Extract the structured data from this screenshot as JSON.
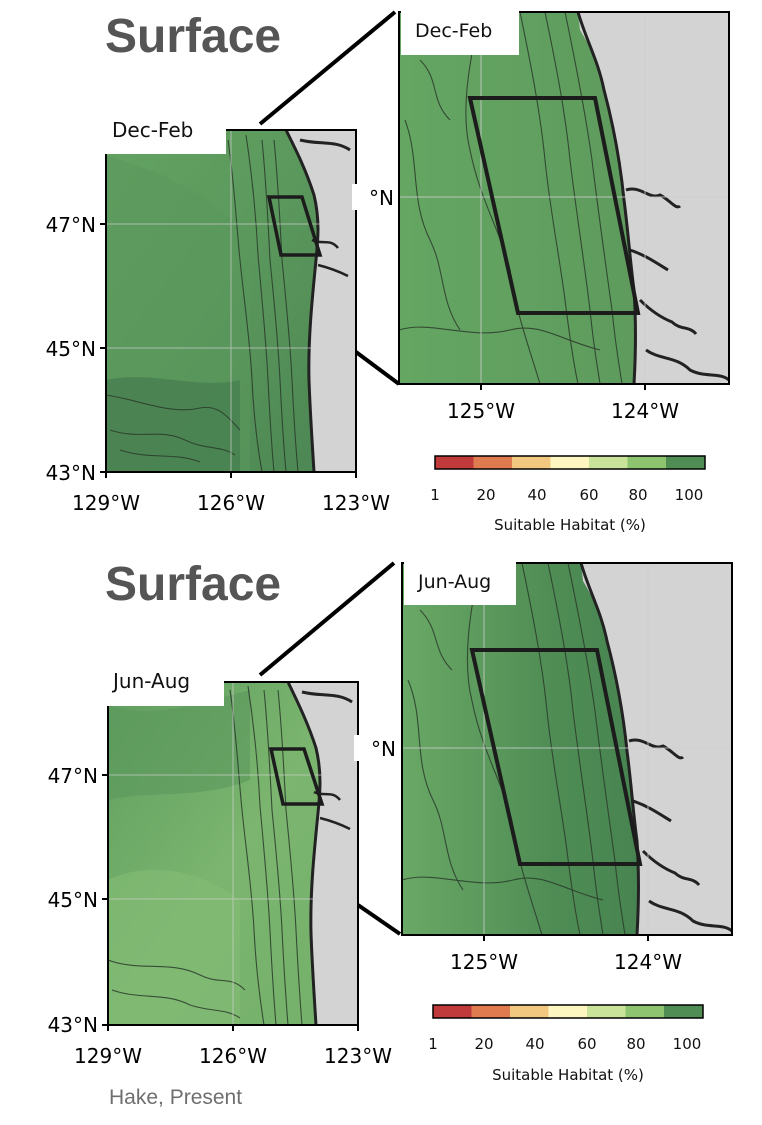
{
  "panels": [
    {
      "title": "Surface",
      "season": "Dec-Feb",
      "inset_season": "Dec-Feb",
      "main_lat_ticks": [
        "47°N",
        "45°N",
        "43°N"
      ],
      "main_lon_ticks": [
        "129°W",
        "126°W",
        "123°W"
      ],
      "inset_lon_ticks": [
        "125°W",
        "124°W"
      ],
      "inset_lat_tick": "°N"
    },
    {
      "title": "Surface",
      "season": "Jun-Aug",
      "inset_season": "Jun-Aug",
      "main_lat_ticks": [
        "47°N",
        "45°N",
        "43°N"
      ],
      "main_lon_ticks": [
        "129°W",
        "126°W",
        "123°W"
      ],
      "inset_lon_ticks": [
        "125°W",
        "124°W"
      ],
      "inset_lat_tick": "°N"
    }
  ],
  "colorbar": {
    "label": "Suitable Habitat (%)",
    "ticks": [
      "1",
      "20",
      "40",
      "60",
      "80",
      "100"
    ],
    "colors": [
      "#c0393b",
      "#e07b4f",
      "#f2c77f",
      "#fdf6c0",
      "#c9e49a",
      "#8ec46f",
      "#4f8d55"
    ]
  },
  "colors": {
    "land": "#d3d3d3",
    "ocean_dark": "#4e8a55",
    "ocean_mid": "#63a062",
    "ocean_light": "#7ab56e",
    "contour": "#2b3b2b",
    "box": "#1c1c1c",
    "title_gray": "#555555"
  },
  "footer": "Hake, Present"
}
